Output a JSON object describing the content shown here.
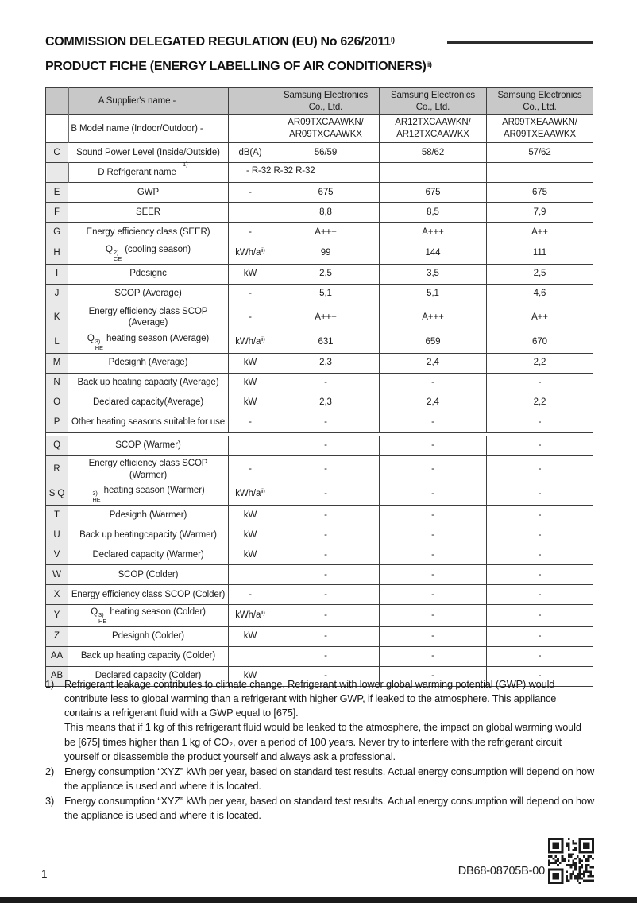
{
  "title": {
    "line1": "COMMISSION DELEGATED REGULATION (EU) No 626/2011",
    "line1_sup": "i)",
    "line2": "PRODUCT FICHE (ENERGY LABELLING OF AIR CONDITIONERS)",
    "line2_sup": "ii)"
  },
  "table": {
    "rows": [
      {
        "key": "A",
        "merged": true,
        "gray": true,
        "letter_label": "A Supplier's name -",
        "unit": "",
        "values": [
          "Samsung Electronics Co., Ltd.",
          "Samsung Electronics Co., Ltd.",
          "Samsung Electronics Co., Ltd."
        ]
      },
      {
        "key": "B",
        "merged": true,
        "letter_label": "B Model name (Indoor/Outdoor) -",
        "unit": "",
        "values": [
          "AR09TXCAAWKN/\nAR09TXCAAWKX",
          "AR12TXCAAWKN/\nAR12TXCAAWKX",
          "AR09TXEAAWKN/\nAR09TXEAAWKX"
        ]
      },
      {
        "key": "C",
        "letter": "C",
        "label": "Sound Power Level (Inside/Outside)",
        "unit": "dB(A)",
        "values": [
          "56/59",
          "58/62",
          "57/62"
        ]
      },
      {
        "key": "D",
        "merged": true,
        "letter_shaded": true,
        "letter_label": "D Refrigerant name",
        "sup_right": "1)",
        "unit": "",
        "unit_overflow": "- R-32 R-32 R-32",
        "values": [
          "",
          "",
          ""
        ]
      },
      {
        "key": "E",
        "letter": "E",
        "label": "GWP",
        "unit": "-",
        "values": [
          "675",
          "675",
          "675"
        ]
      },
      {
        "key": "F",
        "letter": "F",
        "label": "SEER",
        "unit": "",
        "values": [
          "8,8",
          "8,5",
          "7,9"
        ]
      },
      {
        "key": "G",
        "letter": "G",
        "label": "Energy efficiency class (SEER)",
        "unit": "-",
        "values": [
          "A+++",
          "A+++",
          "A++"
        ]
      },
      {
        "key": "H",
        "letter": "H",
        "label": [
          {
            "t": "Q"
          },
          {
            "stack": {
              "sup": "2)",
              "sub": "CE"
            }
          },
          {
            "t": " (cooling season)"
          }
        ],
        "unit": [
          {
            "t": "kWh/a"
          },
          {
            "sup": "ii)"
          }
        ],
        "values": [
          "99",
          "144",
          "111"
        ]
      },
      {
        "key": "I",
        "letter": "I",
        "label": "Pdesignc",
        "unit": "kW",
        "values": [
          "2,5",
          "3,5",
          "2,5"
        ]
      },
      {
        "key": "J",
        "letter": "J",
        "label": "SCOP (Average)",
        "unit": "-",
        "values": [
          "5,1",
          "5,1",
          "4,6"
        ]
      },
      {
        "key": "K",
        "letter": "K",
        "label": "Energy efficiency class SCOP (Average)",
        "unit": "-",
        "values": [
          "A+++",
          "A+++",
          "A++"
        ]
      },
      {
        "key": "L",
        "letter": "L",
        "label": [
          {
            "t": "Q"
          },
          {
            "stack": {
              "sup": "3)",
              "sub": "HE"
            }
          },
          {
            "t": " heating season  (Average)"
          }
        ],
        "unit": [
          {
            "t": "kWh/a"
          },
          {
            "sup": "ii)"
          }
        ],
        "values": [
          "631",
          "659",
          "670"
        ]
      },
      {
        "key": "M",
        "letter": "M",
        "label": "Pdesignh (Average)",
        "unit": "kW",
        "values": [
          "2,3",
          "2,4",
          "2,2"
        ]
      },
      {
        "key": "N",
        "letter": "N",
        "label": "Back up heating capacity (Average)",
        "unit": "kW",
        "values": [
          "-",
          "-",
          "-"
        ]
      },
      {
        "key": "O",
        "letter": "O",
        "label": "Declared capacity(Average)",
        "unit": "kW",
        "values": [
          "2,3",
          "2,4",
          "2,2"
        ]
      },
      {
        "key": "P",
        "letter": "P",
        "label": "Other heating seasons suitable for use",
        "unit": "-",
        "values": [
          "-",
          "-",
          "-"
        ]
      },
      {
        "key": "Q",
        "letter": "Q",
        "gap_before": true,
        "label": "SCOP (Warmer)",
        "unit": "",
        "values": [
          "-",
          "-",
          "-"
        ]
      },
      {
        "key": "R",
        "letter": "R",
        "label": "Energy efficiency class SCOP (Warmer)",
        "unit": "-",
        "values": [
          "-",
          "-",
          "-"
        ]
      },
      {
        "key": "S",
        "letter": "S Q",
        "label": [
          {
            "stack": {
              "sup": "3)",
              "sub": "HE"
            }
          },
          {
            "t": " heating season (Warmer)"
          }
        ],
        "unit": [
          {
            "t": "kWh/a"
          },
          {
            "sup": "ii)"
          }
        ],
        "values": [
          "-",
          "-",
          "-"
        ]
      },
      {
        "key": "T",
        "letter": "T",
        "label": "Pdesignh (Warmer)",
        "unit": "kW",
        "values": [
          "-",
          "-",
          "-"
        ]
      },
      {
        "key": "U",
        "letter": "U",
        "label": "Back up heatingcapacity (Warmer)",
        "unit": "kW",
        "values": [
          "-",
          "-",
          "-"
        ]
      },
      {
        "key": "V",
        "letter": "V",
        "label": "Declared capacity (Warmer)",
        "unit": "kW",
        "values": [
          "-",
          "-",
          "-"
        ]
      },
      {
        "key": "W",
        "letter": "W",
        "label": "SCOP (Colder)",
        "unit": "",
        "values": [
          "-",
          "-",
          "-"
        ]
      },
      {
        "key": "X",
        "letter": "X",
        "label": "Energy efficiency class SCOP (Colder)",
        "unit": "-",
        "values": [
          "-",
          "-",
          "-"
        ]
      },
      {
        "key": "Y",
        "letter": "Y",
        "label": [
          {
            "t": "Q"
          },
          {
            "stack": {
              "sup": "3)",
              "sub": "HE"
            }
          },
          {
            "t": " heating season (Colder)"
          }
        ],
        "unit": [
          {
            "t": "kWh/a"
          },
          {
            "sup": "ii)"
          }
        ],
        "values": [
          "-",
          "-",
          "-"
        ]
      },
      {
        "key": "Z",
        "letter": "Z",
        "label": "Pdesignh (Colder)",
        "unit": "kW",
        "values": [
          "-",
          "-",
          "-"
        ]
      },
      {
        "key": "AA",
        "letter": "AA",
        "label": "Back up heating capacity (Colder)",
        "unit": "",
        "values": [
          "-",
          "-",
          "-"
        ]
      },
      {
        "key": "AB",
        "letter": "AB",
        "label": "Declared capacity (Colder)",
        "unit": "kW",
        "values": [
          "-",
          "-",
          "-"
        ]
      }
    ]
  },
  "footnotes": [
    {
      "num": "1)",
      "paras": [
        "Refrigerant leakage contributes to climate change. Refrigerant with lower global warming potential (GWP) would contribute less to global warming than a refrigerant with higher GWP, if leaked to the atmosphere. This appliance contains a refrigerant fluid with a GWP equal to [675].",
        "This means that if 1 kg of this refrigerant fluid would be leaked to the atmosphere, the impact on global warming would be [675] times higher than 1 kg of CO₂, over a period of 100 years. Never try to interfere with the refrigerant circuit yourself or disassemble the product yourself and always ask a professional."
      ]
    },
    {
      "num": "2)",
      "paras": [
        "Energy consumption “XYZ” kWh per year, based on standard test results. Actual energy consumption will depend on how the appliance is used and where it is located."
      ]
    },
    {
      "num": "3)",
      "paras": [
        "Energy consumption “XYZ” kWh per year, based on standard test results. Actual energy consumption will depend on how the appliance is used and where it is located."
      ]
    }
  ],
  "footer": {
    "page_number": "1",
    "doc_code": "DB68-08705B-00"
  }
}
